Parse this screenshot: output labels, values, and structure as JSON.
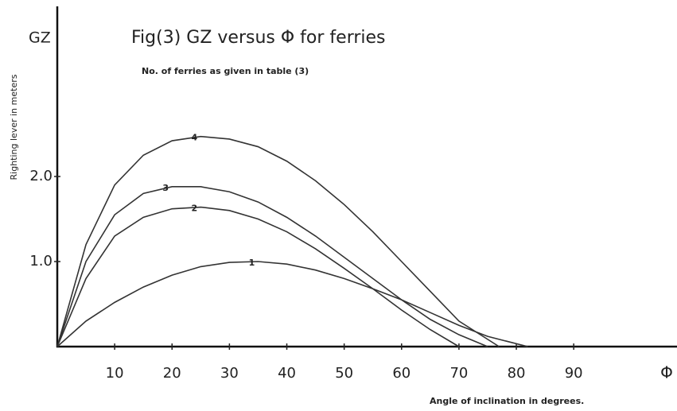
{
  "chart_data": {
    "type": "line",
    "title": "Fig(3)  GZ versus Φ for ferries",
    "subtitle": "No. of ferries as given in table (3)",
    "y_axis_label": "Righting lever in meters",
    "y_axis_symbol": "GZ",
    "x_axis_label": "Angle of inclination in degrees.",
    "x_axis_symbol": "Φ",
    "xlim": [
      0,
      108
    ],
    "xticks": [
      10,
      20,
      30,
      40,
      50,
      60,
      70,
      80,
      90
    ],
    "ylim": [
      0,
      4
    ],
    "yticks": [
      {
        "value": 1,
        "label": "1.0"
      },
      {
        "value": 2,
        "label": "2.0"
      }
    ],
    "color": "#333333",
    "series": [
      {
        "name": "1",
        "x": [
          0,
          5,
          10,
          15,
          20,
          25,
          30,
          35,
          40,
          45,
          50,
          55,
          60,
          65,
          70,
          75,
          82
        ],
        "values": [
          0,
          0.3,
          0.52,
          0.7,
          0.84,
          0.94,
          0.99,
          1.0,
          0.97,
          0.9,
          0.8,
          0.68,
          0.55,
          0.4,
          0.25,
          0.12,
          0
        ]
      },
      {
        "name": "2",
        "x": [
          0,
          5,
          10,
          15,
          20,
          25,
          30,
          35,
          40,
          45,
          50,
          55,
          60,
          65,
          70
        ],
        "values": [
          0,
          0.8,
          1.3,
          1.52,
          1.62,
          1.64,
          1.6,
          1.5,
          1.35,
          1.15,
          0.92,
          0.68,
          0.43,
          0.2,
          0
        ]
      },
      {
        "name": "3",
        "x": [
          0,
          5,
          10,
          15,
          20,
          25,
          30,
          35,
          40,
          45,
          50,
          55,
          60,
          65,
          70,
          75
        ],
        "values": [
          0,
          1.0,
          1.55,
          1.8,
          1.88,
          1.88,
          1.82,
          1.7,
          1.52,
          1.3,
          1.05,
          0.8,
          0.55,
          0.32,
          0.14,
          0
        ]
      },
      {
        "name": "4",
        "x": [
          0,
          5,
          10,
          15,
          20,
          25,
          30,
          35,
          40,
          45,
          50,
          55,
          60,
          65,
          70,
          77
        ],
        "values": [
          0,
          1.2,
          1.9,
          2.25,
          2.42,
          2.47,
          2.44,
          2.35,
          2.18,
          1.95,
          1.67,
          1.35,
          1.0,
          0.65,
          0.3,
          0
        ]
      }
    ]
  }
}
